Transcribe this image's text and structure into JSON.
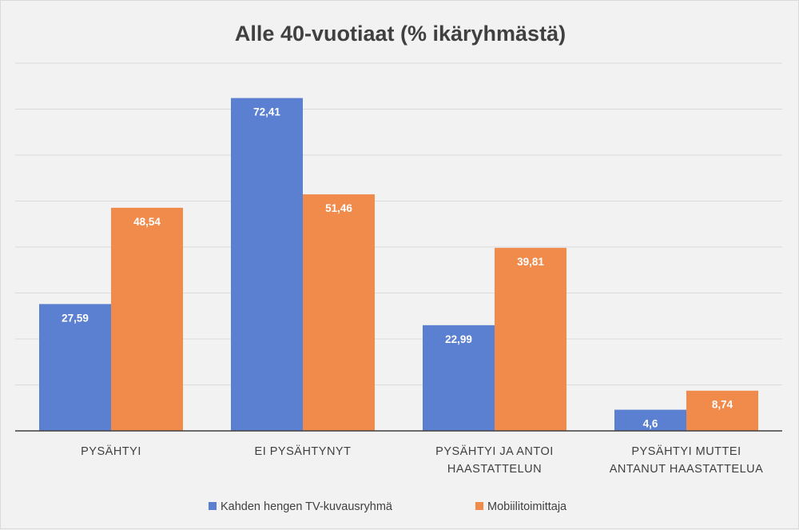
{
  "chart_data": {
    "type": "bar",
    "title": "Alle 40-vuotiaat (% ikäryhmästä)",
    "categories": [
      [
        "PYSÄHTYI"
      ],
      [
        "EI PYSÄHTYNYT"
      ],
      [
        "PYSÄHTYI JA ANTOI",
        "HAASTATTELUN"
      ],
      [
        "PYSÄHTYI MUTTEI",
        "ANTANUT HAASTATTELUA"
      ]
    ],
    "series": [
      {
        "name": "Kahden hengen TV-kuvausryhmä",
        "color": "#5b7fd1",
        "values": [
          27.59,
          72.41,
          22.99,
          4.6
        ],
        "labels": [
          "27,59",
          "72,41",
          "22,99",
          "4,6"
        ]
      },
      {
        "name": "Mobiilitoimittaja",
        "color": "#f08b4c",
        "values": [
          48.54,
          51.46,
          39.81,
          8.74
        ],
        "labels": [
          "48,54",
          "51,46",
          "39,81",
          "8,74"
        ]
      }
    ],
    "ylim": [
      0,
      80
    ],
    "grid": true,
    "legend_position": "bottom",
    "xlabel": "",
    "ylabel": ""
  }
}
